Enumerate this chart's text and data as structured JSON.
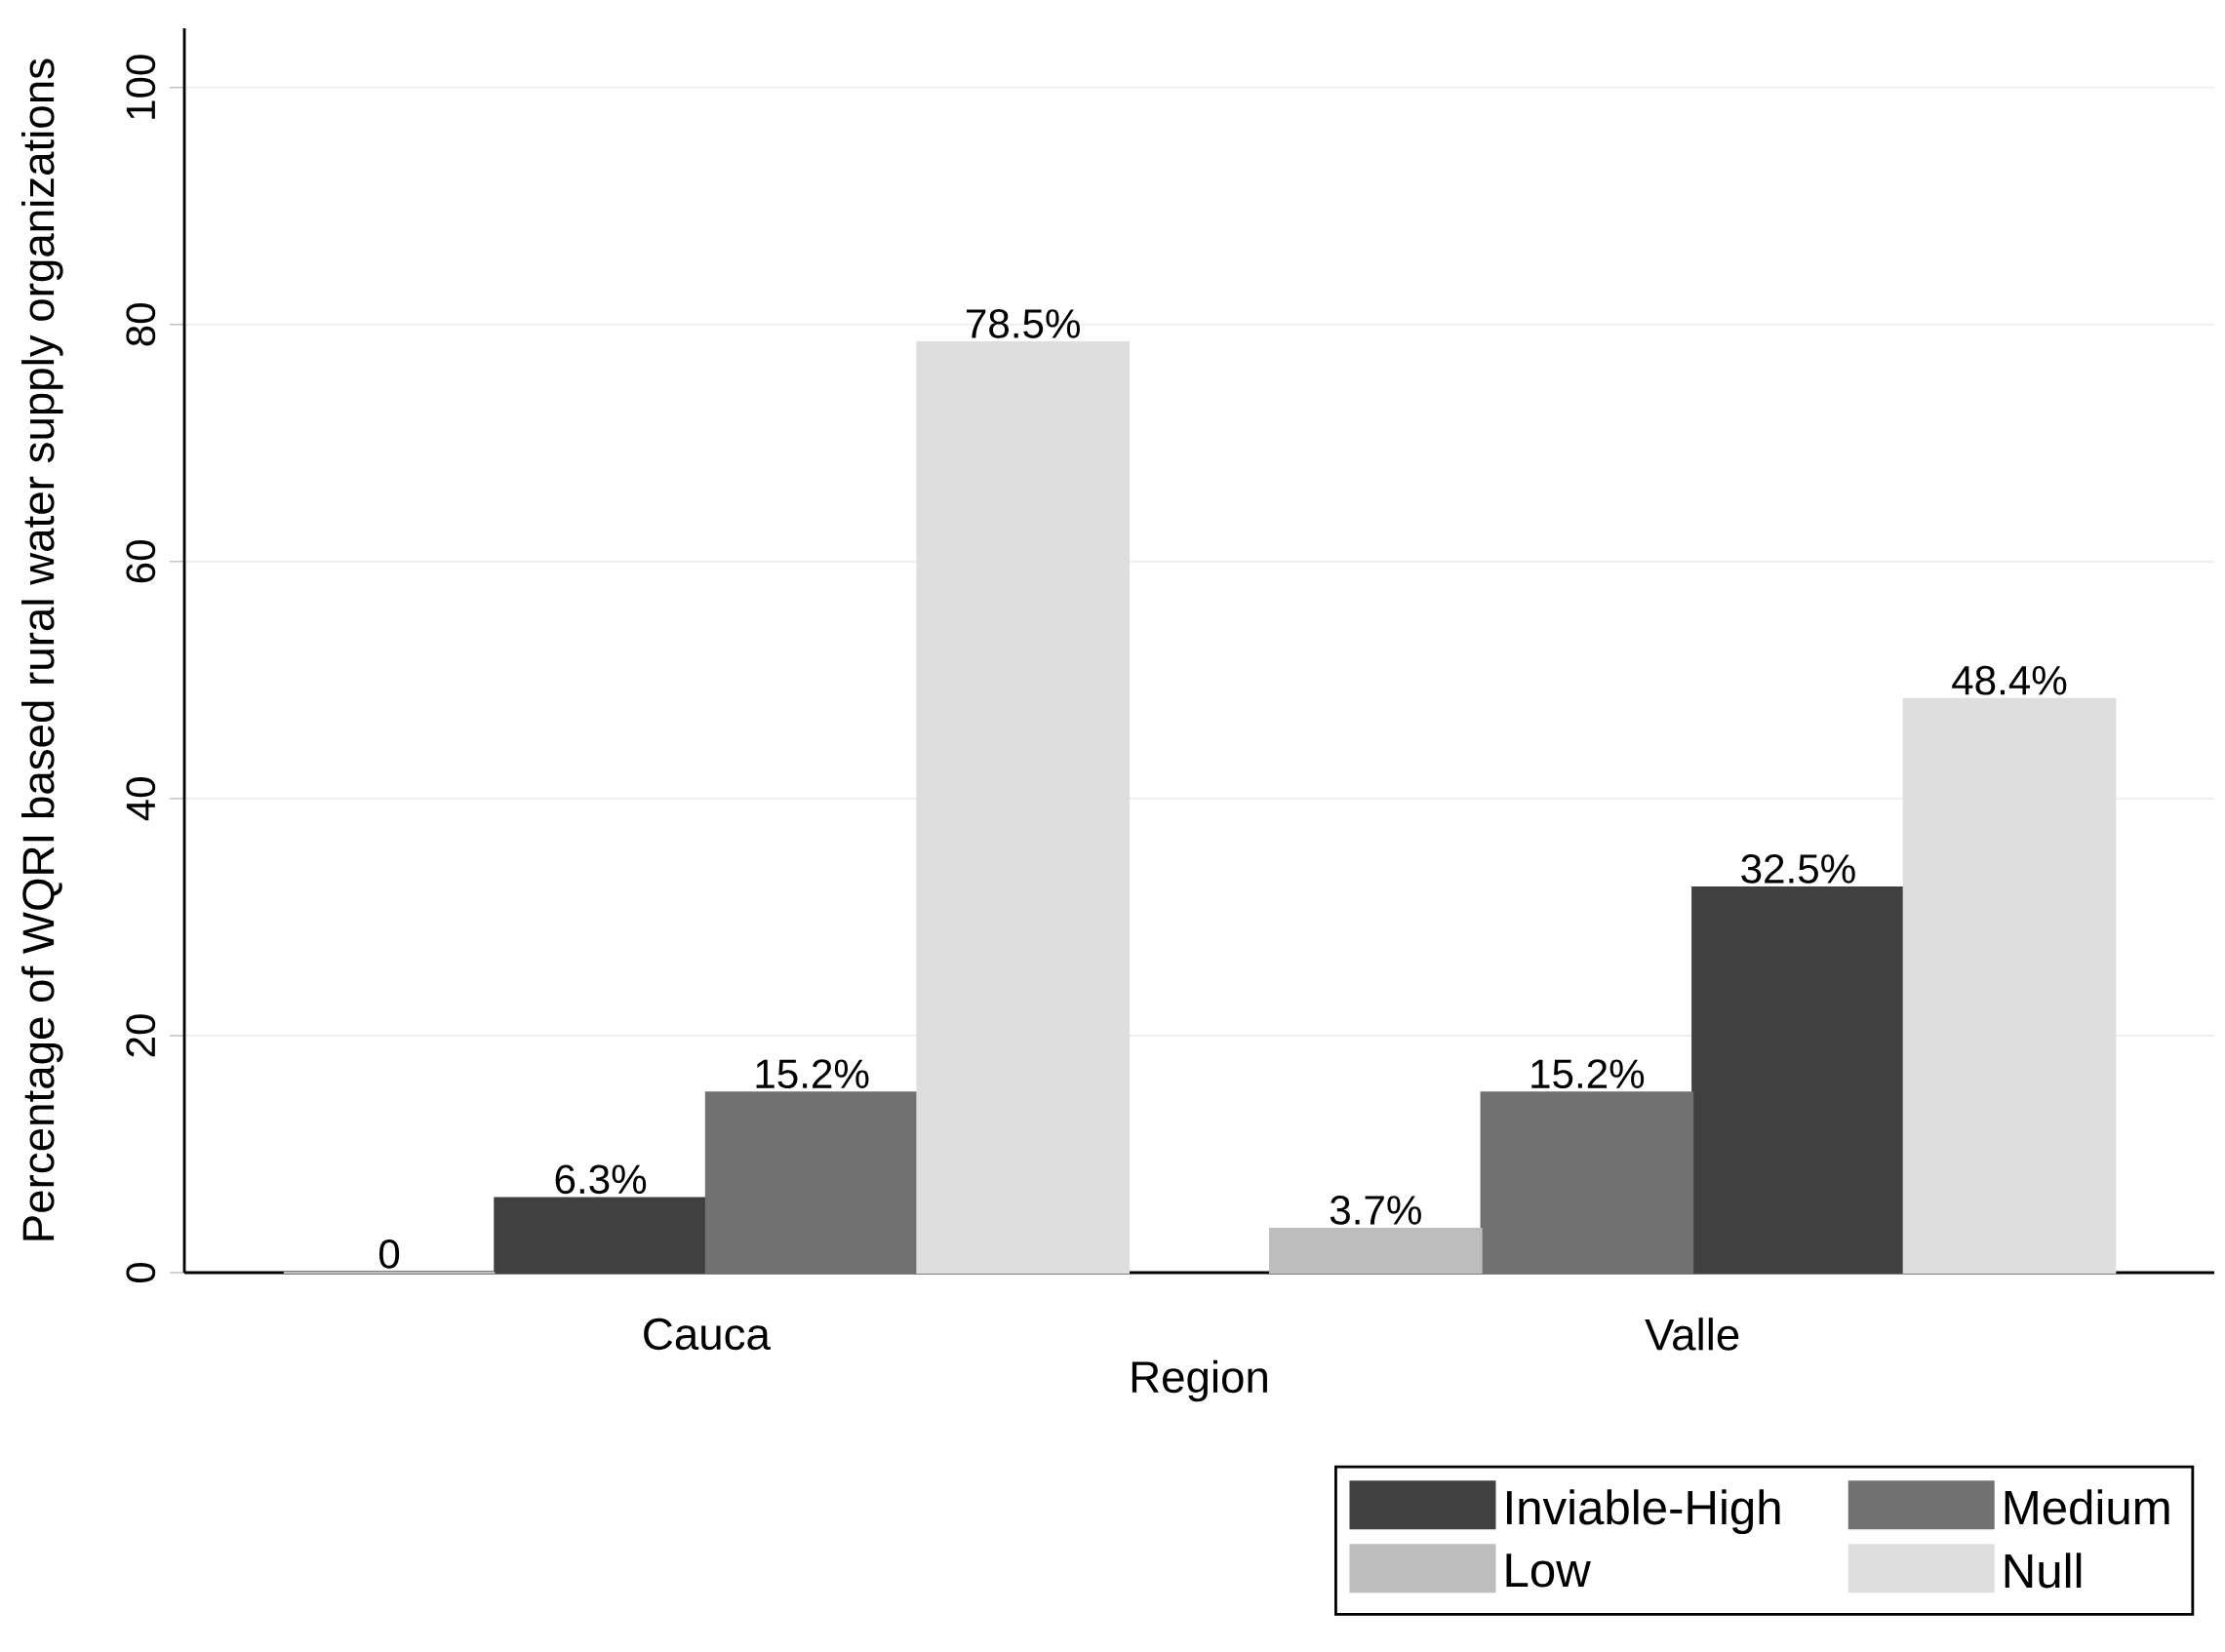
{
  "chart_data": {
    "type": "bar",
    "ylabel": "Percentage of WQRI based rural water supply organizations",
    "xlabel": "Region",
    "categories": [
      null,
      null,
      null,
      null,
      null,
      null,
      null,
      null
    ],
    "annotations": [
      "Cauca",
      "Valle"
    ],
    "series": [
      {
        "name": "Inviable-High",
        "color": "#404040",
        "values": [
          null,
          6.3,
          null,
          null,
          null,
          null,
          32.5,
          null
        ],
        "value_labels": [
          null,
          "6.3%",
          null,
          null,
          null,
          null,
          "32.5%",
          null
        ]
      },
      {
        "name": "Medium",
        "color": "#717171",
        "values": [
          null,
          null,
          15.2,
          null,
          null,
          15.2,
          null,
          null
        ],
        "value_labels": [
          null,
          null,
          "15.2%",
          null,
          null,
          "15.2%",
          null,
          null
        ]
      },
      {
        "name": "Low",
        "color": "#bdbdbd",
        "values": [
          0,
          null,
          null,
          null,
          3.7,
          null,
          null,
          null
        ],
        "value_labels": [
          "0",
          null,
          null,
          null,
          "3.7%",
          null,
          null,
          null
        ]
      },
      {
        "name": "Null",
        "color": "#dedede",
        "values": [
          null,
          null,
          null,
          78.5,
          null,
          null,
          null,
          48.4
        ],
        "value_labels": [
          null,
          null,
          null,
          "78.5%",
          null,
          null,
          null,
          "48.4%"
        ]
      }
    ],
    "ylim": [
      0,
      105
    ],
    "yticks": [
      0,
      20,
      40,
      60,
      80,
      100
    ],
    "grid": "y",
    "legend": "bottom right"
  }
}
